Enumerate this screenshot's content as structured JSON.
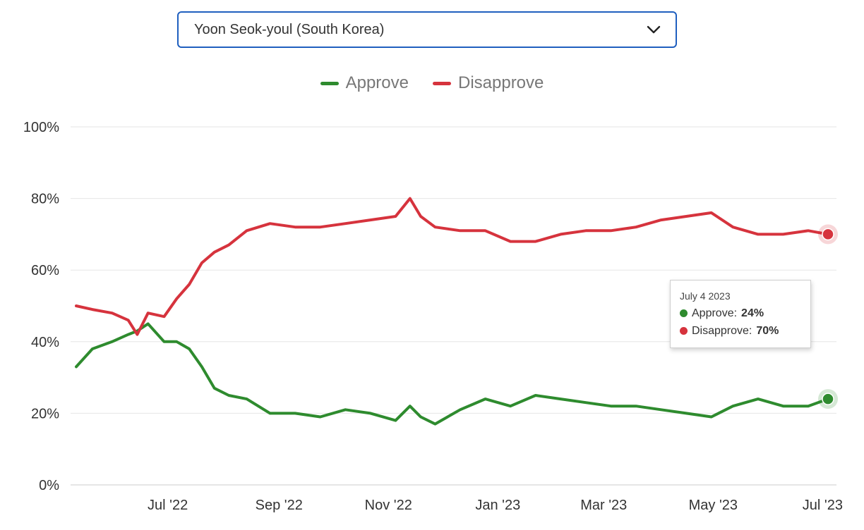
{
  "selector": {
    "value": "Yoon Seok-youl (South Korea)",
    "icon": "chevron-down-icon"
  },
  "legend": {
    "items": [
      {
        "label": "Approve",
        "color": "#2e8b2e"
      },
      {
        "label": "Disapprove",
        "color": "#d6333d"
      }
    ]
  },
  "tooltip": {
    "date": "July 4 2023",
    "rows": [
      {
        "label": "Approve:",
        "value": "24%",
        "color": "#2e8b2e"
      },
      {
        "label": "Disapprove:",
        "value": "70%",
        "color": "#d6333d"
      }
    ]
  },
  "chart_data": {
    "type": "line",
    "title": "",
    "xlabel": "",
    "ylabel": "",
    "ylim": [
      0,
      100
    ],
    "y_ticks": [
      0,
      20,
      40,
      60,
      80,
      100
    ],
    "y_tick_labels": [
      "0%",
      "20%",
      "40%",
      "60%",
      "80%",
      "100%"
    ],
    "x_range": [
      "2022-05-11",
      "2023-07-04"
    ],
    "x_ticks": [
      "2022-07-01",
      "2022-09-01",
      "2022-11-01",
      "2023-01-01",
      "2023-03-01",
      "2023-05-01",
      "2023-07-01"
    ],
    "x_tick_labels": [
      "Jul '22",
      "Sep '22",
      "Nov '22",
      "Jan '23",
      "Mar '23",
      "May '23",
      "Jul '23"
    ],
    "grid": true,
    "legend_position": "top-center",
    "x": [
      "2022-05-11",
      "2022-05-20",
      "2022-05-31",
      "2022-06-09",
      "2022-06-14",
      "2022-06-20",
      "2022-06-29",
      "2022-07-06",
      "2022-07-13",
      "2022-07-20",
      "2022-07-27",
      "2022-08-04",
      "2022-08-14",
      "2022-08-27",
      "2022-09-10",
      "2022-09-24",
      "2022-10-08",
      "2022-10-22",
      "2022-11-05",
      "2022-11-13",
      "2022-11-19",
      "2022-11-27",
      "2022-12-11",
      "2022-12-25",
      "2023-01-08",
      "2023-01-22",
      "2023-02-05",
      "2023-02-19",
      "2023-03-05",
      "2023-03-19",
      "2023-04-02",
      "2023-04-16",
      "2023-04-30",
      "2023-05-12",
      "2023-05-26",
      "2023-06-09",
      "2023-06-23",
      "2023-07-04"
    ],
    "series": [
      {
        "name": "Approve",
        "color": "#2e8b2e",
        "values": [
          33,
          38,
          40,
          42,
          43,
          45,
          40,
          40,
          38,
          33,
          27,
          25,
          24,
          20,
          20,
          19,
          21,
          20,
          18,
          22,
          19,
          17,
          21,
          24,
          22,
          25,
          24,
          23,
          22,
          22,
          21,
          20,
          19,
          22,
          24,
          22,
          22,
          24
        ]
      },
      {
        "name": "Disapprove",
        "color": "#d6333d",
        "values": [
          50,
          49,
          48,
          46,
          42,
          48,
          47,
          52,
          56,
          62,
          65,
          67,
          71,
          73,
          72,
          72,
          73,
          74,
          75,
          80,
          75,
          72,
          71,
          71,
          68,
          68,
          70,
          71,
          71,
          72,
          74,
          75,
          76,
          72,
          70,
          70,
          71,
          70
        ]
      }
    ]
  }
}
